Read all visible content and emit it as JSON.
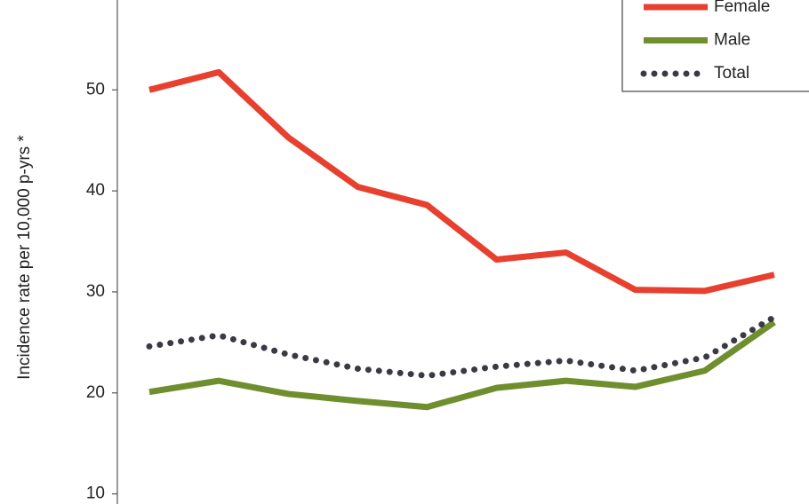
{
  "chart_data": {
    "type": "line",
    "y_label": "Incidence rate per 10,000 p-yrs *",
    "categories": [
      null,
      null,
      null,
      null,
      null,
      null,
      null,
      null,
      null,
      null
    ],
    "series": [
      {
        "name": "Female",
        "color": "#e8402f",
        "style": "solid",
        "values": [
          50.0,
          51.75,
          45.3,
          40.4,
          38.6,
          33.2,
          33.9,
          30.2,
          30.1,
          31.7
        ]
      },
      {
        "name": "Male",
        "color": "#6f8f2f",
        "style": "solid",
        "values": [
          20.1,
          21.2,
          19.9,
          19.2,
          18.6,
          20.5,
          21.2,
          20.6,
          22.2,
          27.0
        ]
      },
      {
        "name": "Total",
        "color": "#3a3a44",
        "style": "dotted",
        "values": [
          24.6,
          25.7,
          23.8,
          22.4,
          21.7,
          22.6,
          23.2,
          22.2,
          23.5,
          27.5
        ]
      }
    ],
    "ylim": [
      9.0,
      58.9
    ],
    "yticks": [
      10,
      20,
      30,
      40,
      50
    ],
    "legend": "top-right"
  }
}
